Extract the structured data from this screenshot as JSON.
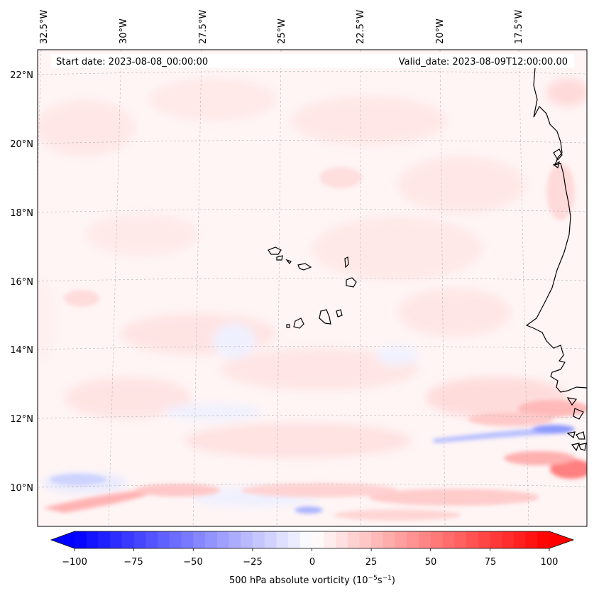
{
  "map": {
    "annotation_start": "Start date: 2023-08-08_00:00:00",
    "annotation_valid": "Valid_date: 2023-08-09T12:00:00.00",
    "longitude_labels": [
      "32.5°W",
      "30°W",
      "27.5°W",
      "25°W",
      "22.5°W",
      "20°W",
      "17.5°W"
    ],
    "latitude_labels": [
      "22°N",
      "20°N",
      "18°N",
      "16°N",
      "14°N",
      "12°N",
      "10°N"
    ],
    "extent": {
      "lon_min": -32.6,
      "lon_max": -16.2,
      "lat_min": 8.8,
      "lat_max": 22.8
    },
    "field": "500 hPa absolute vorticity"
  },
  "colorbar": {
    "ticks": [
      "−100",
      "−75",
      "−50",
      "−25",
      "0",
      "25",
      "50",
      "75",
      "100"
    ],
    "label_main": "500 hPa absolute vorticity (10",
    "label_exp1": "−5",
    "label_mid": "s",
    "label_exp2": "−1",
    "label_end": ")",
    "vmin": -100,
    "vmax": 100,
    "levels": 41,
    "negative_color": "#0000ff",
    "positive_color": "#ff0000"
  },
  "colors": {
    "background_field": "#fff4f4",
    "coastline": "#000000",
    "gridline": "#b5b5b5"
  }
}
